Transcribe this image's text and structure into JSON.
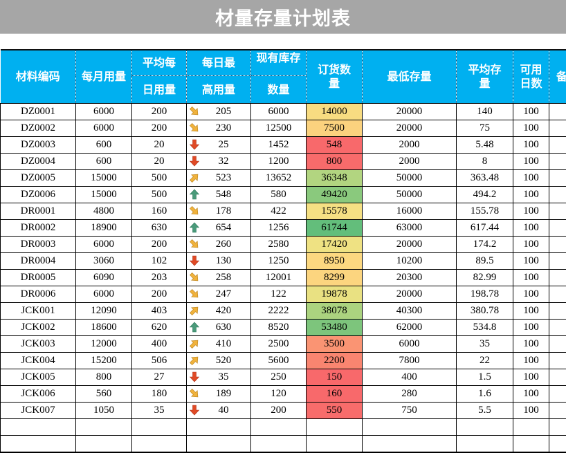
{
  "title": "材量存量计划表",
  "header": {
    "code": "材料编码",
    "monthly": "每月用量",
    "avg_daily_top": "平均每",
    "avg_daily_bottom": "日用量",
    "max_daily_top": "每日最",
    "max_daily_bottom": "高用量",
    "stock_top": "现有库存",
    "stock_bottom": "数量",
    "order": "订货数量",
    "min_stock": "最低存量",
    "avg_stock": "平均存量",
    "days": "可用日数",
    "remark": "备"
  },
  "icon_legend": {
    "arrow-up-green": "#4a9a7a",
    "arrow-up-right-yellow": "#f0b23c",
    "arrow-down-right-yellow": "#f0b23c",
    "arrow-down-red": "#e04a26"
  },
  "rows": [
    {
      "code": "DZ0001",
      "monthly": "6000",
      "avg_daily": "200",
      "icon": "arrow-down-right-yellow",
      "max_daily": "205",
      "stock": "6000",
      "order": "14000",
      "order_color": "#f8dc81",
      "min_stock": "20000",
      "avg_stock": "140",
      "days": "100"
    },
    {
      "code": "DZ0002",
      "monthly": "6000",
      "avg_daily": "200",
      "icon": "arrow-down-right-yellow",
      "max_daily": "230",
      "stock": "12500",
      "order": "7500",
      "order_color": "#fbd27e",
      "min_stock": "20000",
      "avg_stock": "75",
      "days": "100"
    },
    {
      "code": "DZ0003",
      "monthly": "600",
      "avg_daily": "20",
      "icon": "arrow-down-red",
      "max_daily": "25",
      "stock": "1452",
      "order": "548",
      "order_color": "#f8696b",
      "min_stock": "2000",
      "avg_stock": "5.48",
      "days": "100"
    },
    {
      "code": "DZ0004",
      "monthly": "600",
      "avg_daily": "20",
      "icon": "arrow-down-red",
      "max_daily": "32",
      "stock": "1200",
      "order": "800",
      "order_color": "#f86b6b",
      "min_stock": "2000",
      "avg_stock": "8",
      "days": "100"
    },
    {
      "code": "DZ0005",
      "monthly": "15000",
      "avg_daily": "500",
      "icon": "arrow-up-right-yellow",
      "max_daily": "523",
      "stock": "13652",
      "order": "36348",
      "order_color": "#b2d580",
      "min_stock": "50000",
      "avg_stock": "363.48",
      "days": "100"
    },
    {
      "code": "DZ0006",
      "monthly": "15000",
      "avg_daily": "500",
      "icon": "arrow-up-green",
      "max_daily": "548",
      "stock": "580",
      "order": "49420",
      "order_color": "#8ac97d",
      "min_stock": "50000",
      "avg_stock": "494.2",
      "days": "100"
    },
    {
      "code": "DR0001",
      "monthly": "4800",
      "avg_daily": "160",
      "icon": "arrow-down-right-yellow",
      "max_daily": "178",
      "stock": "422",
      "order": "15578",
      "order_color": "#f5e083",
      "min_stock": "16000",
      "avg_stock": "155.78",
      "days": "100"
    },
    {
      "code": "DR0002",
      "monthly": "18900",
      "avg_daily": "630",
      "icon": "arrow-up-green",
      "max_daily": "654",
      "stock": "1256",
      "order": "61744",
      "order_color": "#63be7b",
      "min_stock": "63000",
      "avg_stock": "617.44",
      "days": "100"
    },
    {
      "code": "DR0003",
      "monthly": "6000",
      "avg_daily": "200",
      "icon": "arrow-down-right-yellow",
      "max_daily": "260",
      "stock": "2580",
      "order": "17420",
      "order_color": "#efe283",
      "min_stock": "20000",
      "avg_stock": "174.2",
      "days": "100"
    },
    {
      "code": "DR0004",
      "monthly": "3060",
      "avg_daily": "102",
      "icon": "arrow-down-red",
      "max_daily": "130",
      "stock": "1250",
      "order": "8950",
      "order_color": "#fcd880",
      "min_stock": "10200",
      "avg_stock": "89.5",
      "days": "100"
    },
    {
      "code": "DR0005",
      "monthly": "6090",
      "avg_daily": "203",
      "icon": "arrow-down-right-yellow",
      "max_daily": "258",
      "stock": "12001",
      "order": "8299",
      "order_color": "#fcd57f",
      "min_stock": "20300",
      "avg_stock": "82.99",
      "days": "100"
    },
    {
      "code": "DR0006",
      "monthly": "6000",
      "avg_daily": "200",
      "icon": "arrow-down-right-yellow",
      "max_daily": "247",
      "stock": "122",
      "order": "19878",
      "order_color": "#e9e182",
      "min_stock": "20000",
      "avg_stock": "198.78",
      "days": "100"
    },
    {
      "code": "JCK001",
      "monthly": "12090",
      "avg_daily": "403",
      "icon": "arrow-up-right-yellow",
      "max_daily": "420",
      "stock": "2222",
      "order": "38078",
      "order_color": "#abd37f",
      "min_stock": "40300",
      "avg_stock": "380.78",
      "days": "100"
    },
    {
      "code": "JCK002",
      "monthly": "18600",
      "avg_daily": "620",
      "icon": "arrow-up-green",
      "max_daily": "630",
      "stock": "8520",
      "order": "53480",
      "order_color": "#7dc57c",
      "min_stock": "62000",
      "avg_stock": "534.8",
      "days": "100"
    },
    {
      "code": "JCK003",
      "monthly": "12000",
      "avg_daily": "400",
      "icon": "arrow-up-right-yellow",
      "max_daily": "410",
      "stock": "2500",
      "order": "3500",
      "order_color": "#fa9473",
      "min_stock": "6000",
      "avg_stock": "35",
      "days": "100"
    },
    {
      "code": "JCK004",
      "monthly": "15200",
      "avg_daily": "506",
      "icon": "arrow-up-right-yellow",
      "max_daily": "520",
      "stock": "5600",
      "order": "2200",
      "order_color": "#f98570",
      "min_stock": "7800",
      "avg_stock": "22",
      "days": "100"
    },
    {
      "code": "JCK005",
      "monthly": "800",
      "avg_daily": "27",
      "icon": "arrow-down-red",
      "max_daily": "35",
      "stock": "250",
      "order": "150",
      "order_color": "#f8696b",
      "min_stock": "400",
      "avg_stock": "1.5",
      "days": "100"
    },
    {
      "code": "JCK006",
      "monthly": "560",
      "avg_daily": "180",
      "icon": "arrow-down-right-yellow",
      "max_daily": "189",
      "stock": "120",
      "order": "160",
      "order_color": "#f8696b",
      "min_stock": "280",
      "avg_stock": "1.6",
      "days": "100"
    },
    {
      "code": "JCK007",
      "monthly": "1050",
      "avg_daily": "35",
      "icon": "arrow-down-red",
      "max_daily": "40",
      "stock": "200",
      "order": "550",
      "order_color": "#f86c6b",
      "min_stock": "750",
      "avg_stock": "5.5",
      "days": "100"
    }
  ],
  "blank_rows": 2
}
